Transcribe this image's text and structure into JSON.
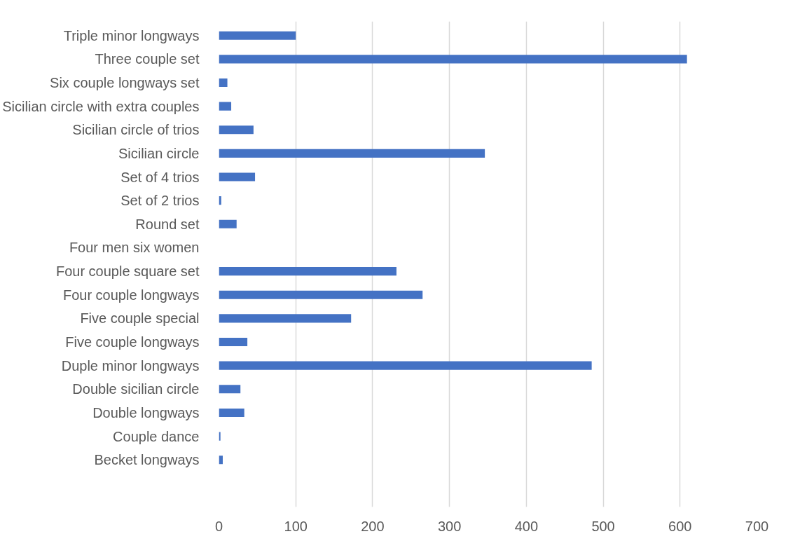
{
  "chart_data": {
    "type": "bar",
    "orientation": "horizontal",
    "categories": [
      "Triple minor longways",
      "Three couple set",
      "Six couple longways set",
      "Sicilian circle with extra couples",
      "Sicilian circle of trios",
      "Sicilian circle",
      "Set of 4 trios",
      "Set of 2 trios",
      "Round set",
      "Four men six women",
      "Four couple square set",
      "Four couple longways",
      "Five couple special",
      "Five couple longways",
      "Duple minor longways",
      "Double sicilian circle",
      "Double longways",
      "Couple dance",
      "Becket longways"
    ],
    "series": [
      {
        "color": "#4472c4",
        "values": [
          100,
          609,
          11,
          16,
          45,
          346,
          47,
          3,
          23,
          0,
          231,
          265,
          172,
          37,
          485,
          28,
          33,
          2,
          5
        ]
      }
    ],
    "xlim": [
      0,
      700
    ],
    "xticks": [
      0,
      100,
      200,
      300,
      400,
      500,
      600,
      700
    ],
    "grid": "x"
  }
}
